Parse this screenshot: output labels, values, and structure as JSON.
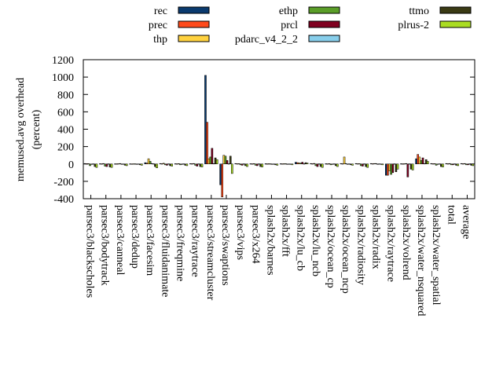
{
  "chart_data": {
    "type": "bar",
    "title": "",
    "ylabel": "memused.avg overhead\n(percent)",
    "xlabel": "",
    "ylim": [
      -400,
      1200
    ],
    "yticks": [
      -400,
      -200,
      0,
      200,
      400,
      600,
      800,
      1000,
      1200
    ],
    "grid": false,
    "legend_position": "top",
    "categories": [
      "parsec3/blackscholes",
      "parsec3/bodytrack",
      "parsec3/canneal",
      "parsec3/dedup",
      "parsec3/facesim",
      "parsec3/fluidanimate",
      "parsec3/freqmine",
      "parsec3/raytrace",
      "parsec3/streamcluster",
      "parsec3/swaptions",
      "parsec3/vips",
      "parsec3/x264",
      "splash2x/barnes",
      "splash2x/fft",
      "splash2x/lu_cb",
      "splash2x/lu_ncb",
      "splash2x/ocean_cp",
      "splash2x/ocean_ncp",
      "splash2x/radiosity",
      "splash2x/radix",
      "splash2x/raytrace",
      "splash2x/volrend",
      "splash2x/water_nsquared",
      "splash2x/water_spatial",
      "total",
      "average"
    ],
    "series": [
      {
        "name": "rec",
        "color": "#0a3a6e",
        "values": [
          5,
          3,
          2,
          2,
          15,
          5,
          3,
          4,
          1020,
          -240,
          5,
          3,
          3,
          3,
          20,
          5,
          3,
          5,
          5,
          5,
          -130,
          3,
          60,
          5,
          5,
          5
        ]
      },
      {
        "name": "prec",
        "color": "#ff4a1a",
        "values": [
          3,
          2,
          2,
          1,
          10,
          3,
          2,
          3,
          480,
          -380,
          3,
          2,
          2,
          2,
          15,
          3,
          2,
          3,
          3,
          3,
          -130,
          2,
          110,
          3,
          3,
          3
        ]
      },
      {
        "name": "thp",
        "color": "#ffd23f",
        "values": [
          4,
          5,
          3,
          2,
          60,
          8,
          4,
          5,
          60,
          100,
          4,
          4,
          3,
          3,
          12,
          6,
          4,
          80,
          4,
          5,
          -80,
          3,
          80,
          4,
          5,
          5
        ]
      },
      {
        "name": "ethp",
        "color": "#5a9e28",
        "values": [
          -20,
          -25,
          5,
          2,
          30,
          -10,
          -10,
          -15,
          80,
          90,
          -10,
          -15,
          2,
          3,
          10,
          -20,
          -10,
          5,
          -20,
          5,
          -120,
          5,
          40,
          -15,
          -10,
          -10
        ]
      },
      {
        "name": "prcl",
        "color": "#800020",
        "values": [
          -5,
          -30,
          -5,
          -3,
          5,
          -15,
          -5,
          -25,
          180,
          40,
          -15,
          -20,
          -3,
          -2,
          20,
          -30,
          -5,
          -5,
          -25,
          -5,
          -100,
          -150,
          70,
          -5,
          -10,
          -10
        ]
      },
      {
        "name": "pdarc_v4_2_2",
        "color": "#87ceeb",
        "values": [
          2,
          2,
          1,
          1,
          3,
          2,
          2,
          2,
          5,
          3,
          2,
          2,
          1,
          1,
          3,
          2,
          2,
          2,
          2,
          2,
          2,
          2,
          5,
          2,
          2,
          2
        ]
      },
      {
        "name": "ttmo",
        "color": "#3a3a14",
        "values": [
          -30,
          -35,
          -15,
          -10,
          -30,
          -20,
          -15,
          -30,
          70,
          90,
          -20,
          -30,
          -10,
          -5,
          15,
          -30,
          -20,
          -10,
          -30,
          -5,
          -90,
          -60,
          50,
          -30,
          -15,
          -15
        ]
      },
      {
        "name": "plrus-2",
        "color": "#aadd22",
        "values": [
          -40,
          -40,
          -20,
          -15,
          -45,
          -25,
          -20,
          -35,
          50,
          -110,
          -30,
          -35,
          -15,
          -10,
          10,
          -40,
          -30,
          -15,
          -40,
          -10,
          -60,
          -70,
          30,
          -35,
          -20,
          -20
        ]
      }
    ]
  }
}
